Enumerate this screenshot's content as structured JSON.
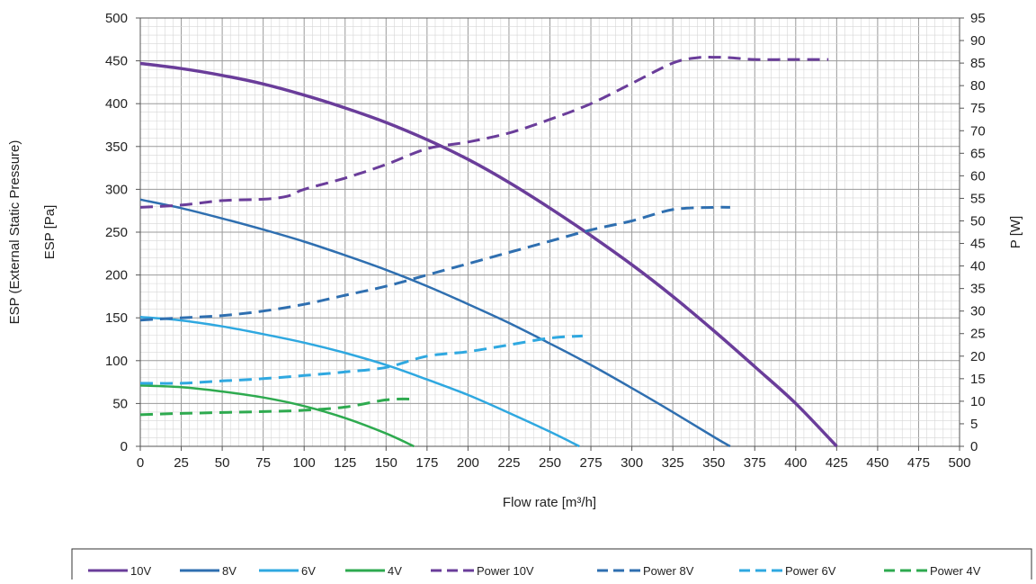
{
  "chart_data": {
    "type": "line",
    "xlabel": "Flow rate [m³/h]",
    "ylabel_line1": "ESP (External Static Pressure)",
    "ylabel_line2": "ESP [Pa]",
    "y2label": "P [W]",
    "xlim": [
      0,
      500
    ],
    "ylim": [
      0,
      500
    ],
    "y2lim": [
      0,
      95
    ],
    "xticks": [
      "0",
      "25",
      "50",
      "75",
      "100",
      "125",
      "150",
      "175",
      "200",
      "225",
      "250",
      "275",
      "300",
      "325",
      "350",
      "375",
      "400",
      "425",
      "450",
      "475",
      "500"
    ],
    "yticks": [
      "0",
      "50",
      "100",
      "150",
      "200",
      "250",
      "300",
      "350",
      "400",
      "450",
      "500"
    ],
    "y2ticks": [
      "0",
      "5",
      "10",
      "15",
      "20",
      "25",
      "30",
      "35",
      "40",
      "45",
      "50",
      "55",
      "60",
      "65",
      "70",
      "75",
      "80",
      "85",
      "90",
      "95"
    ],
    "grid": true,
    "legend_position": "bottom",
    "series": [
      {
        "name": "10V",
        "axis": "left",
        "style": "solid",
        "color": "#6a3d9a",
        "x": [
          0,
          25,
          50,
          75,
          100,
          125,
          150,
          175,
          200,
          225,
          250,
          275,
          300,
          325,
          350,
          375,
          400,
          425
        ],
        "y": [
          447,
          441,
          433,
          423,
          410,
          395,
          378,
          358,
          335,
          308,
          278,
          246,
          212,
          175,
          135,
          93,
          50,
          0
        ]
      },
      {
        "name": "8V",
        "axis": "left",
        "style": "solid",
        "color": "#2f6fb0",
        "x": [
          0,
          25,
          50,
          75,
          100,
          125,
          150,
          175,
          200,
          225,
          250,
          275,
          300,
          325,
          350,
          360
        ],
        "y": [
          288,
          278,
          266,
          253,
          239,
          223,
          206,
          187,
          166,
          144,
          120,
          95,
          68,
          40,
          11,
          0
        ]
      },
      {
        "name": "6V",
        "axis": "left",
        "style": "solid",
        "color": "#2fa8e0",
        "x": [
          0,
          25,
          50,
          75,
          100,
          125,
          150,
          175,
          200,
          225,
          250,
          268
        ],
        "y": [
          151,
          147,
          140,
          131,
          121,
          109,
          95,
          78,
          60,
          39,
          17,
          0
        ]
      },
      {
        "name": "4V",
        "axis": "left",
        "style": "solid",
        "color": "#2eaa4f",
        "x": [
          0,
          25,
          50,
          75,
          100,
          125,
          150,
          167
        ],
        "y": [
          71,
          69,
          64,
          57,
          47,
          33,
          15,
          0
        ]
      },
      {
        "name": "Power 10V",
        "axis": "right",
        "style": "dashed",
        "color": "#6a3d9a",
        "x": [
          0,
          25,
          50,
          75,
          90,
          100,
          125,
          150,
          175,
          200,
          225,
          250,
          275,
          300,
          325,
          340,
          350,
          360,
          375,
          400,
          420
        ],
        "y": [
          53,
          53.5,
          54.5,
          54.8,
          55.5,
          57,
          59.5,
          62.5,
          66,
          67.5,
          69.5,
          72.5,
          76,
          80.5,
          85,
          86.2,
          86.3,
          86.2,
          85.8,
          85.8,
          85.8
        ]
      },
      {
        "name": "Power 8V",
        "axis": "right",
        "style": "dashed",
        "color": "#2f6fb0",
        "x": [
          0,
          25,
          50,
          75,
          100,
          125,
          150,
          175,
          200,
          225,
          250,
          275,
          300,
          325,
          350,
          360
        ],
        "y": [
          28,
          28.5,
          29,
          30,
          31.5,
          33.5,
          35.5,
          38,
          40.5,
          43,
          45.5,
          48,
          50,
          52.5,
          53,
          53
        ]
      },
      {
        "name": "Power 6V",
        "axis": "right",
        "style": "dashed",
        "color": "#2fa8e0",
        "x": [
          0,
          25,
          50,
          75,
          100,
          125,
          150,
          175,
          200,
          225,
          250,
          270
        ],
        "y": [
          14,
          14,
          14.5,
          15,
          15.7,
          16.5,
          17.5,
          20,
          21,
          22.5,
          24,
          24.5
        ]
      },
      {
        "name": "Power 4V",
        "axis": "right",
        "style": "dashed",
        "color": "#2eaa4f",
        "x": [
          0,
          25,
          50,
          75,
          100,
          125,
          150,
          165
        ],
        "y": [
          7,
          7.3,
          7.5,
          7.7,
          8,
          8.7,
          10.3,
          10.5
        ]
      }
    ]
  }
}
